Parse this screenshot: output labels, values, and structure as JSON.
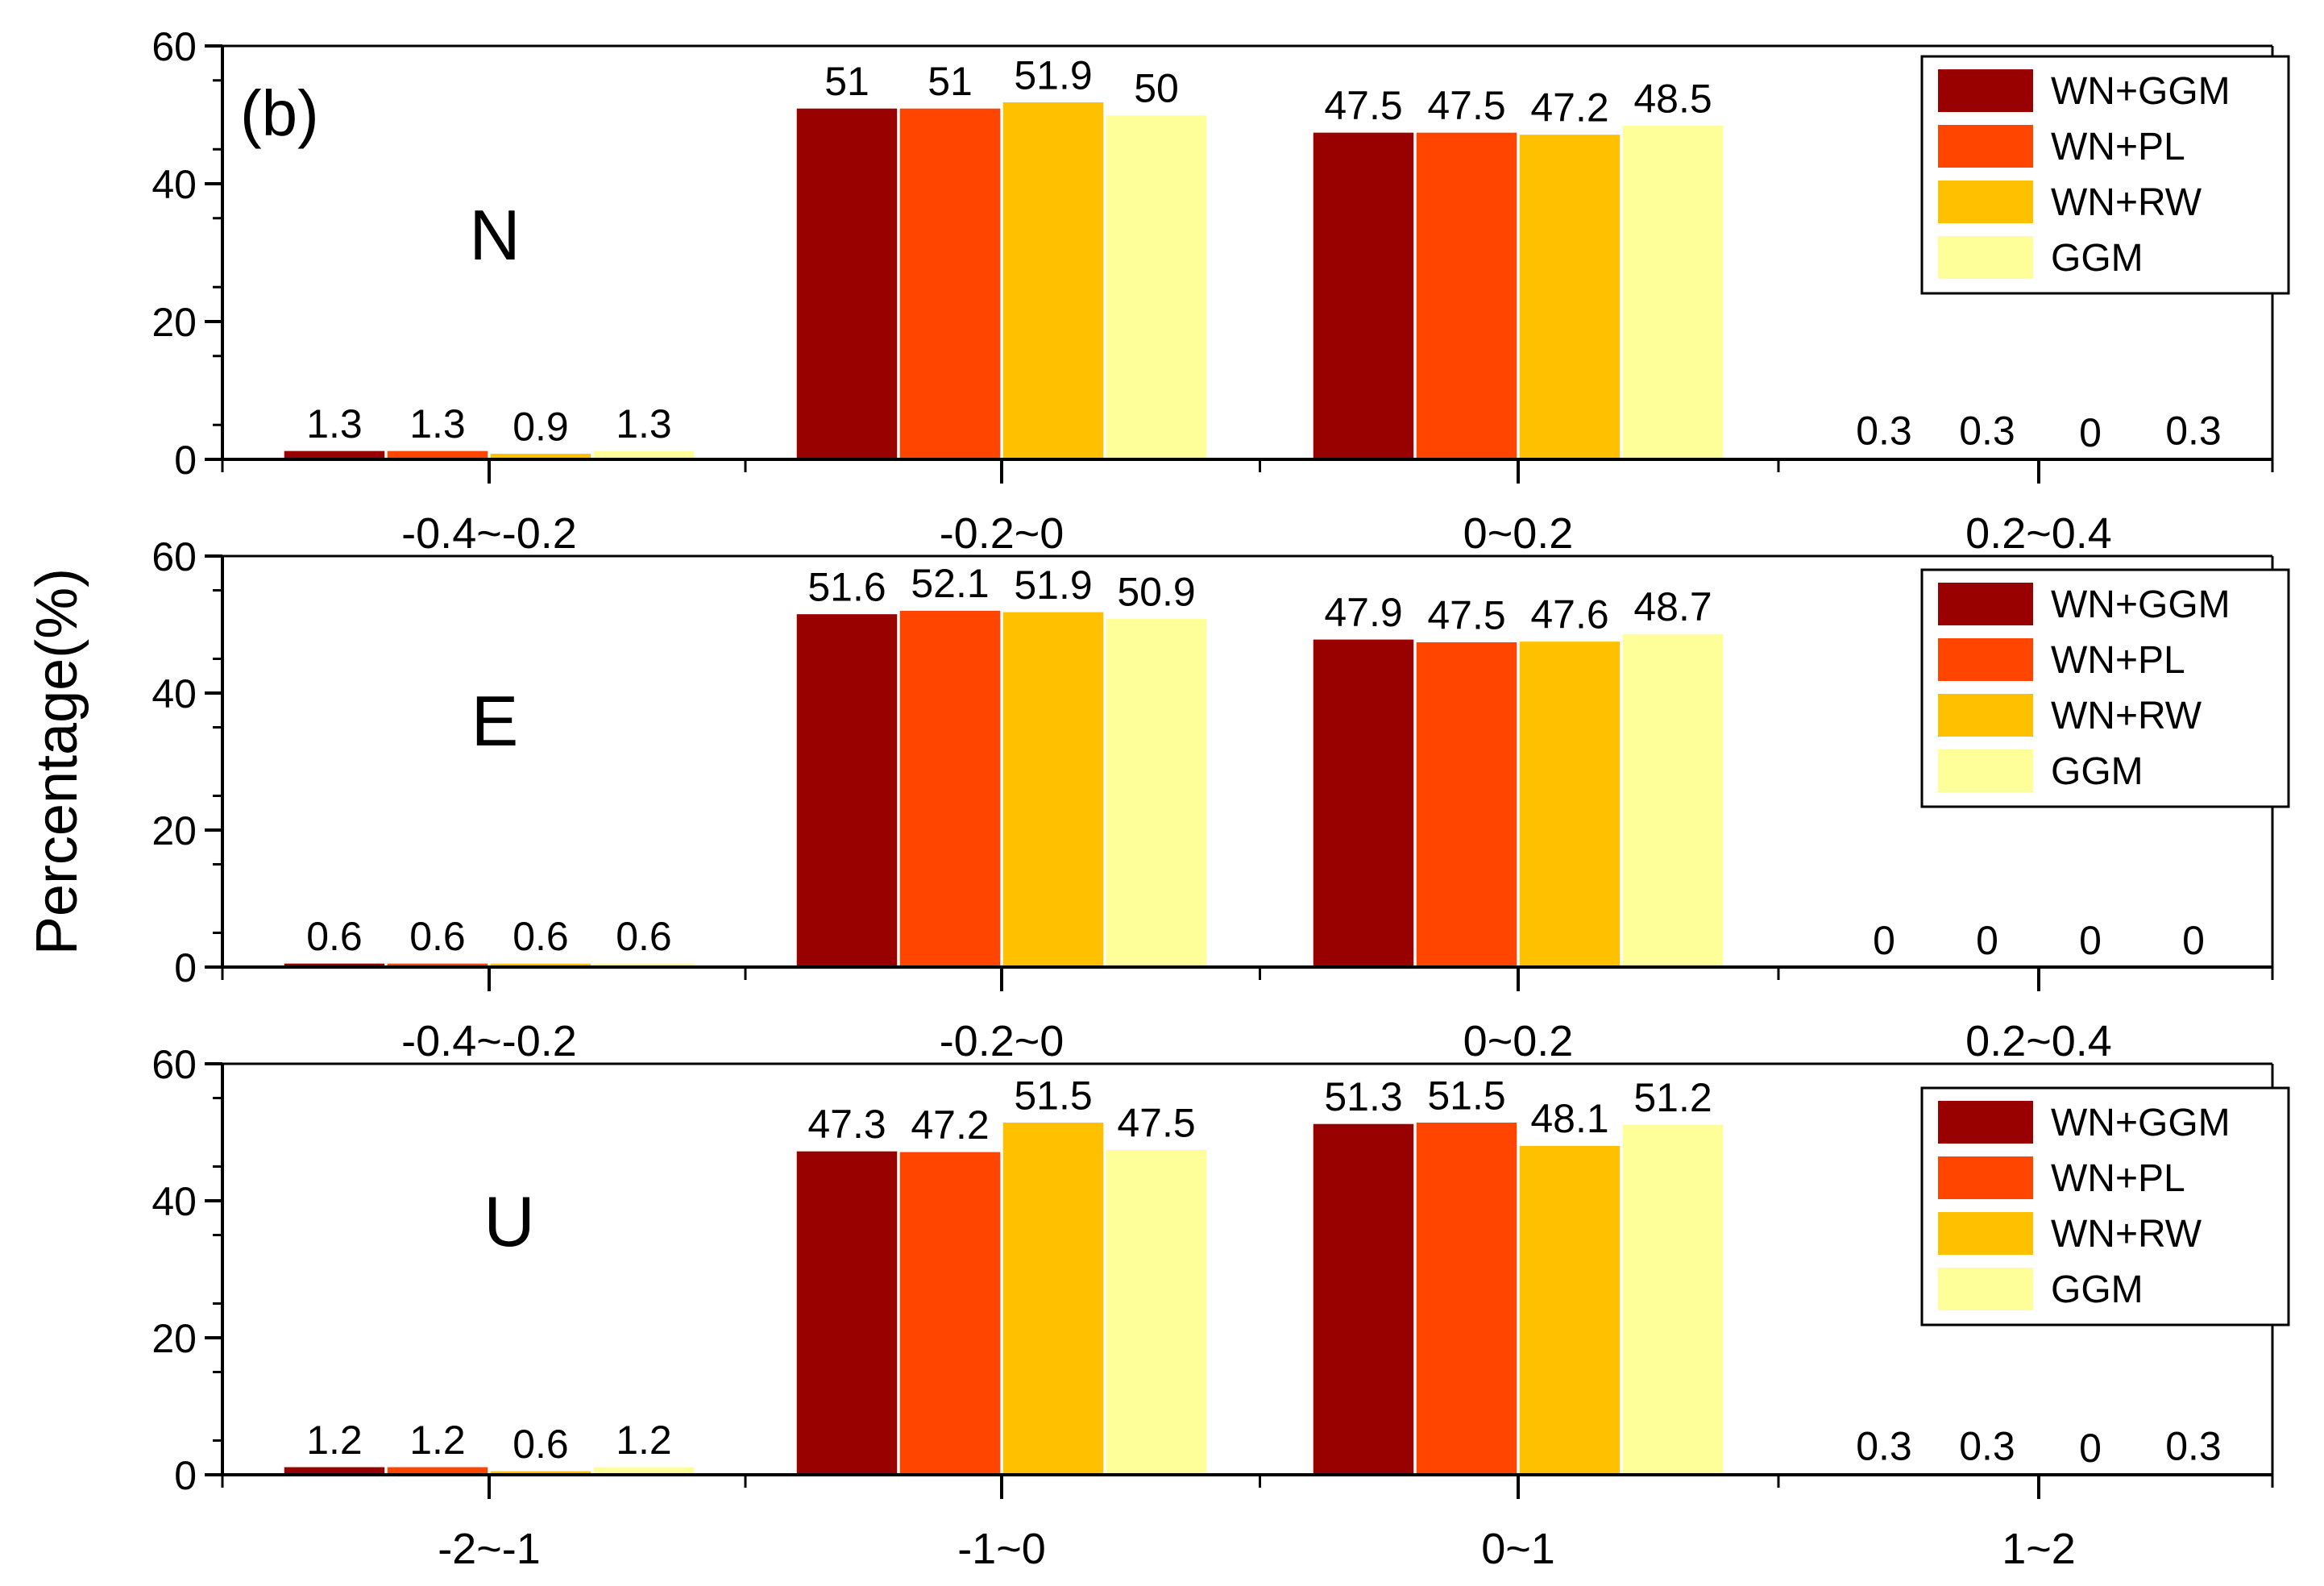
{
  "figure_label": "(b)",
  "ylabel": "Percentage(%)",
  "colors": {
    "WN+GGM": "#990000",
    "WN+PL": "#ff4500",
    "WN+RW": "#ffc000",
    "GGM": "#ffff99"
  },
  "chart_data": [
    {
      "type": "bar",
      "title": "N",
      "ylabel": "Percentage(%)",
      "ylim": [
        0,
        60
      ],
      "yticks": [
        0,
        20,
        40,
        60
      ],
      "categories": [
        "-0.4~-0.2",
        "-0.2~0",
        "0~0.2",
        "0.2~0.4"
      ],
      "legend": [
        "WN+GGM",
        "WN+PL",
        "WN+RW",
        "GGM"
      ],
      "series": [
        {
          "name": "WN+GGM",
          "values": [
            1.3,
            51,
            47.5,
            0.3
          ],
          "labels": [
            "1.3",
            "51",
            "47.5",
            "0.3"
          ]
        },
        {
          "name": "WN+PL",
          "values": [
            1.3,
            51,
            47.5,
            0.3
          ],
          "labels": [
            "1.3",
            "51",
            "47.5",
            "0.3"
          ]
        },
        {
          "name": "WN+RW",
          "values": [
            0.9,
            51.9,
            47.2,
            0
          ],
          "labels": [
            "0.9",
            "51.9",
            "47.2",
            "0"
          ]
        },
        {
          "name": "GGM",
          "values": [
            1.3,
            50,
            48.5,
            0.3
          ],
          "labels": [
            "1.3",
            "50",
            "48.5",
            "0.3"
          ]
        }
      ]
    },
    {
      "type": "bar",
      "title": "E",
      "ylabel": "Percentage(%)",
      "ylim": [
        0,
        60
      ],
      "yticks": [
        0,
        20,
        40,
        60
      ],
      "categories": [
        "-0.4~-0.2",
        "-0.2~0",
        "0~0.2",
        "0.2~0.4"
      ],
      "legend": [
        "WN+GGM",
        "WN+PL",
        "WN+RW",
        "GGM"
      ],
      "series": [
        {
          "name": "WN+GGM",
          "values": [
            0.6,
            51.6,
            47.9,
            0
          ],
          "labels": [
            "0.6",
            "51.6",
            "47.9",
            "0"
          ]
        },
        {
          "name": "WN+PL",
          "values": [
            0.6,
            52.1,
            47.5,
            0
          ],
          "labels": [
            "0.6",
            "52.1",
            "47.5",
            "0"
          ]
        },
        {
          "name": "WN+RW",
          "values": [
            0.6,
            51.9,
            47.6,
            0
          ],
          "labels": [
            "0.6",
            "51.9",
            "47.6",
            "0"
          ]
        },
        {
          "name": "GGM",
          "values": [
            0.6,
            50.9,
            48.7,
            0
          ],
          "labels": [
            "0.6",
            "50.9",
            "48.7",
            "0"
          ]
        }
      ]
    },
    {
      "type": "bar",
      "title": "U",
      "ylabel": "Percentage(%)",
      "ylim": [
        0,
        60
      ],
      "yticks": [
        0,
        20,
        40,
        60
      ],
      "categories": [
        "-2~-1",
        "-1~0",
        "0~1",
        "1~2"
      ],
      "legend": [
        "WN+GGM",
        "WN+PL",
        "WN+RW",
        "GGM"
      ],
      "series": [
        {
          "name": "WN+GGM",
          "values": [
            1.2,
            47.3,
            51.3,
            0.3
          ],
          "labels": [
            "1.2",
            "47.3",
            "51.3",
            "0.3"
          ]
        },
        {
          "name": "WN+PL",
          "values": [
            1.2,
            47.2,
            51.5,
            0.3
          ],
          "labels": [
            "1.2",
            "47.2",
            "51.5",
            "0.3"
          ]
        },
        {
          "name": "WN+RW",
          "values": [
            0.6,
            51.5,
            48.1,
            0
          ],
          "labels": [
            "0.6",
            "51.5",
            "48.1",
            "0"
          ]
        },
        {
          "name": "GGM",
          "values": [
            1.2,
            47.5,
            51.2,
            0.3
          ],
          "labels": [
            "1.2",
            "47.5",
            "51.2",
            "0.3"
          ]
        }
      ]
    }
  ]
}
